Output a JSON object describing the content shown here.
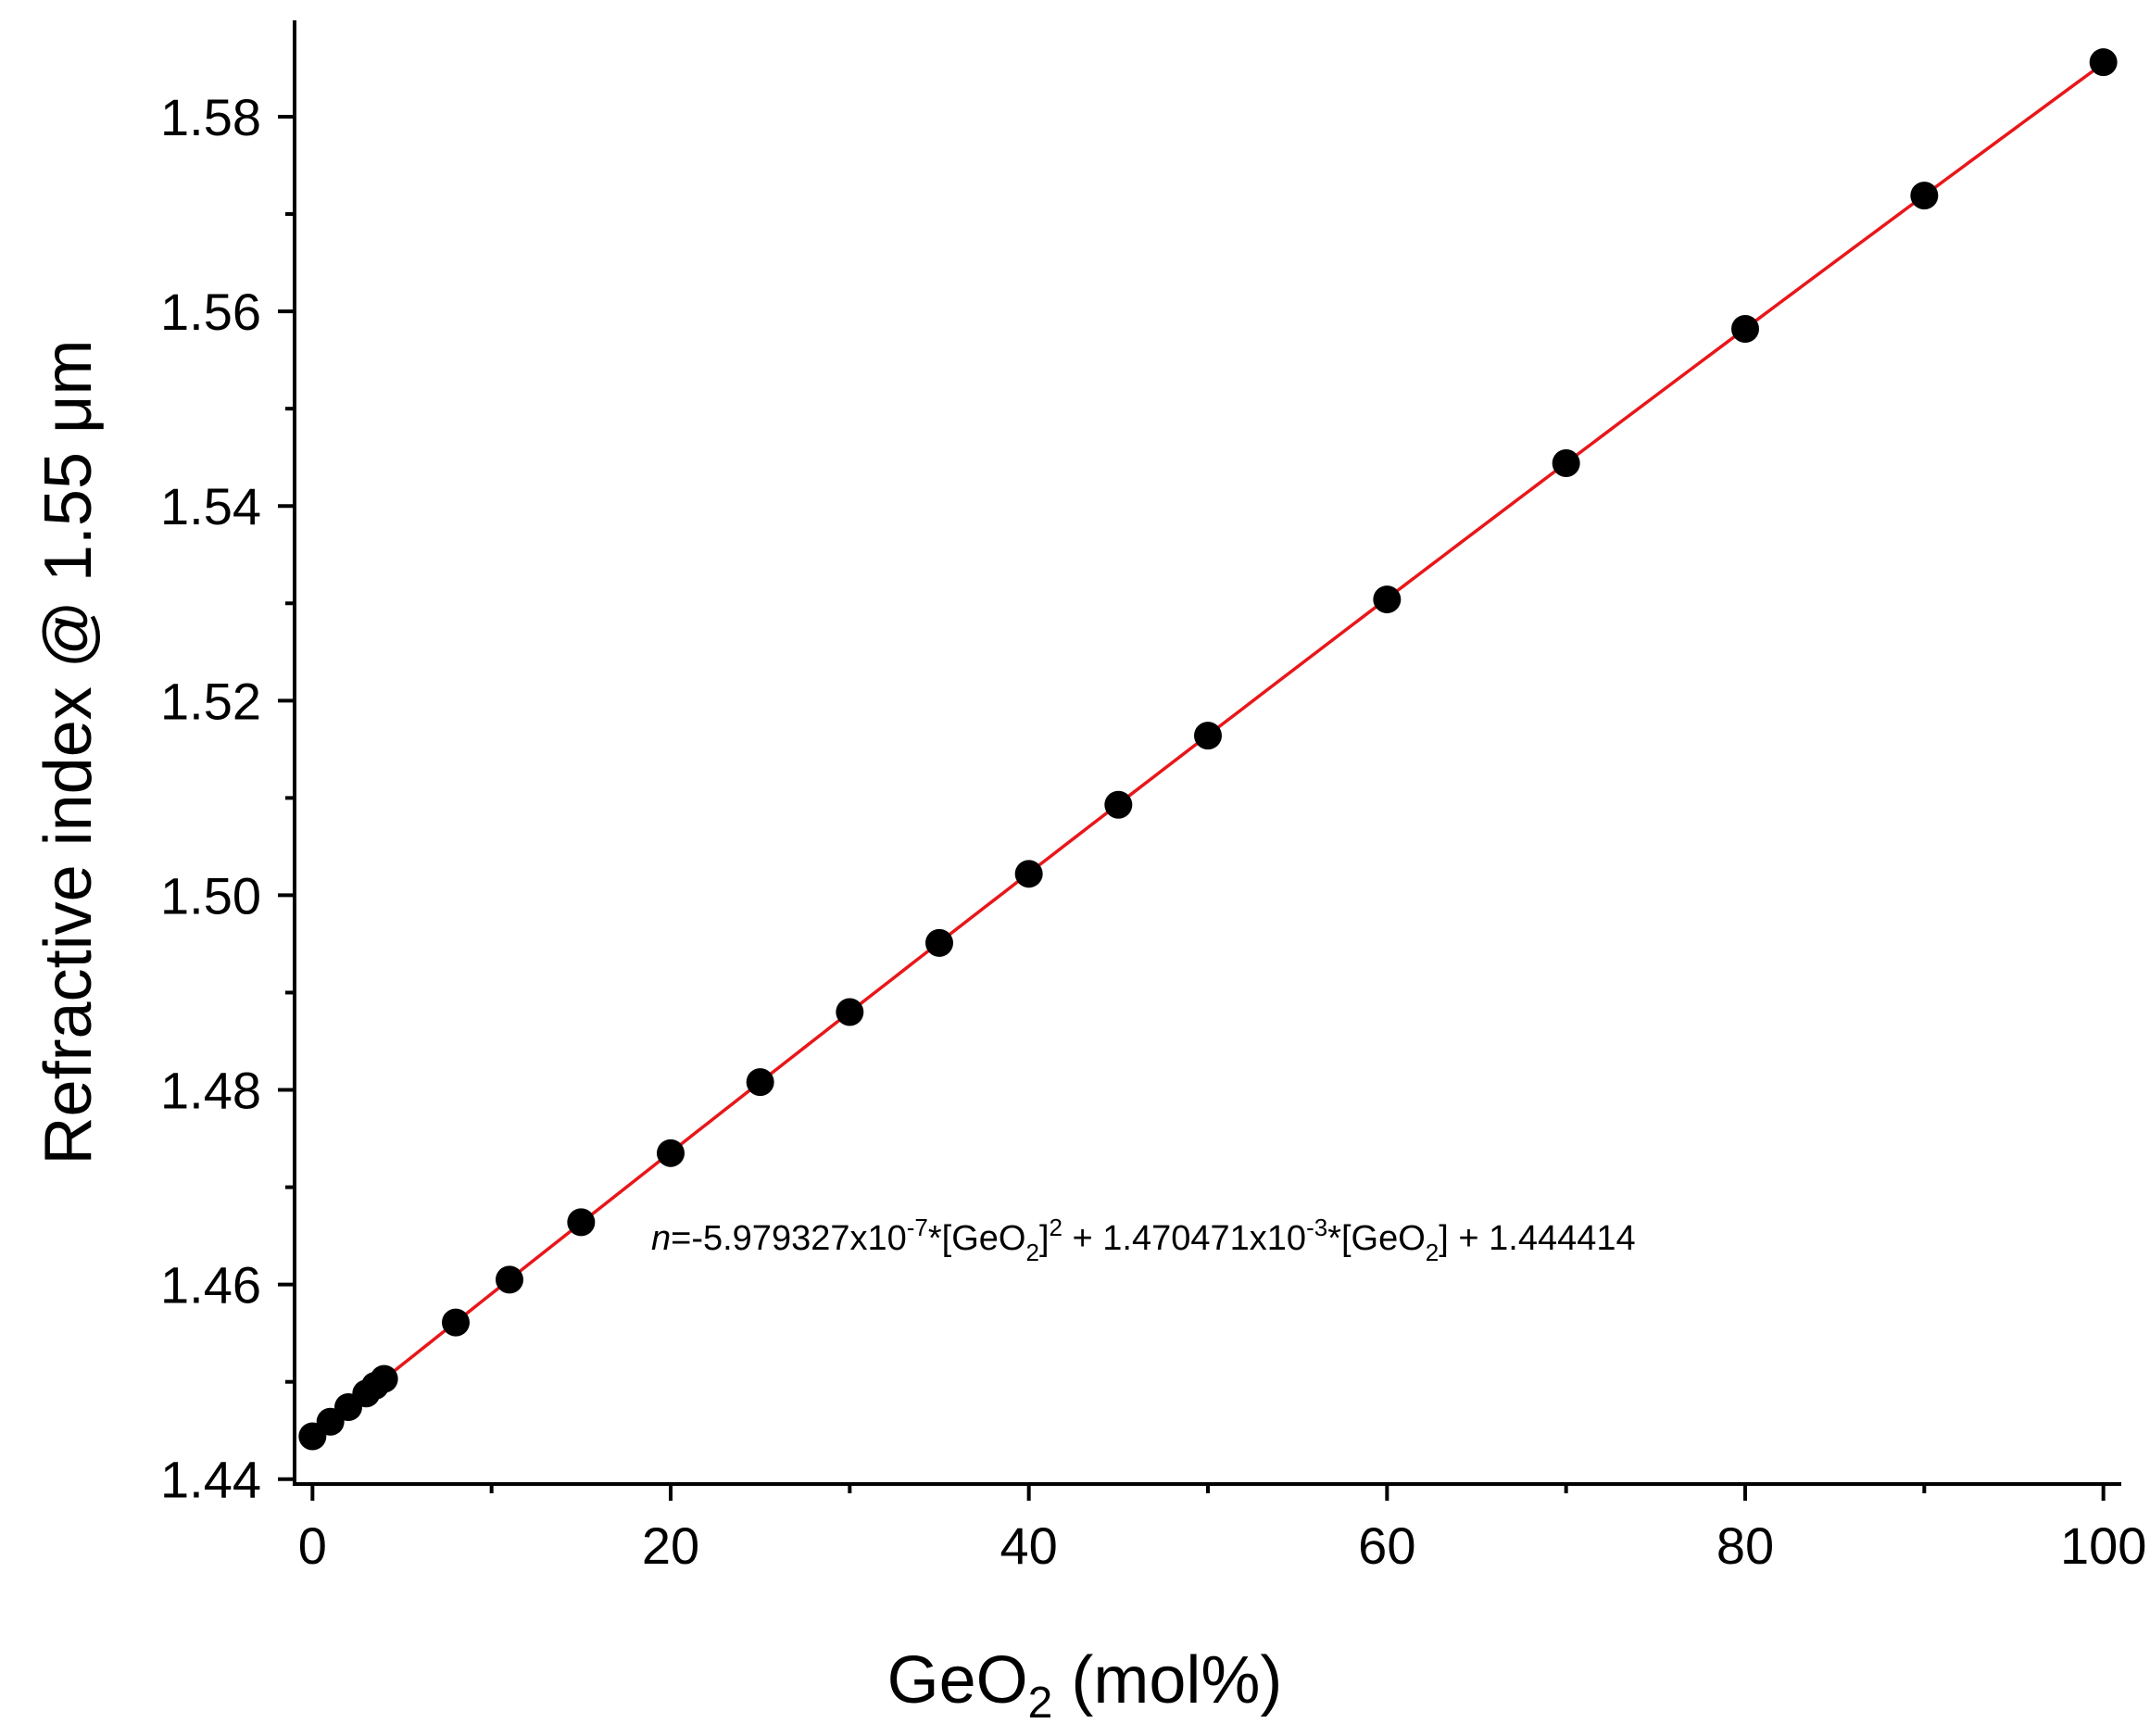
{
  "chart_data": {
    "type": "scatter",
    "xlabel": {
      "base": "GeO",
      "sub": "2",
      "rest": " (mol%)"
    },
    "ylabel": "Refractive index @ 1.55 μm",
    "xlim": [
      -1,
      101
    ],
    "ylim": [
      1.4395,
      1.5899
    ],
    "x_ticks": [
      0,
      20,
      40,
      60,
      80,
      100
    ],
    "x_tick_labels": [
      "0",
      "20",
      "40",
      "60",
      "80",
      "100"
    ],
    "x_minor_ticks": [
      10,
      30,
      50,
      70,
      90
    ],
    "y_ticks": [
      1.44,
      1.46,
      1.48,
      1.5,
      1.52,
      1.54,
      1.56,
      1.58
    ],
    "y_tick_labels": [
      "1.44",
      "1.46",
      "1.48",
      "1.50",
      "1.52",
      "1.54",
      "1.56",
      "1.58"
    ],
    "y_minor_ticks": [
      1.45,
      1.47,
      1.49,
      1.51,
      1.53,
      1.55,
      1.57
    ],
    "series": [
      {
        "marker": "circle",
        "color": "#000000",
        "x": [
          0,
          1,
          2,
          3,
          3.5,
          4,
          8,
          11,
          15,
          20,
          25,
          30,
          35,
          40,
          45,
          50,
          60,
          70,
          80,
          90,
          100
        ],
        "y": [
          1.4444,
          1.4459,
          1.4474,
          1.4488,
          1.4496,
          1.4503,
          1.4561,
          1.4605,
          1.4664,
          1.4735,
          1.4808,
          1.488,
          1.4951,
          1.5022,
          1.5093,
          1.5164,
          1.5304,
          1.5444,
          1.5582,
          1.5719,
          1.5856
        ]
      }
    ],
    "fit": {
      "color": "#e8171a",
      "coefficients": {
        "a": -5.979327e-07,
        "b": 0.001470471,
        "c": 1.444414
      },
      "x_range": [
        0,
        100
      ]
    },
    "annotation": {
      "n": "n",
      "part1": "=-5.979327x10",
      "exp1": "-7",
      "part2": "*[GeO",
      "sub1": "2",
      "part3": "]",
      "exp2": "2",
      "part4": " + 1.470471x10",
      "exp3": "-3",
      "part5": "*[GeO",
      "sub2": "2",
      "part6": "] + 1.444414"
    },
    "grid": false,
    "legend": "none"
  }
}
